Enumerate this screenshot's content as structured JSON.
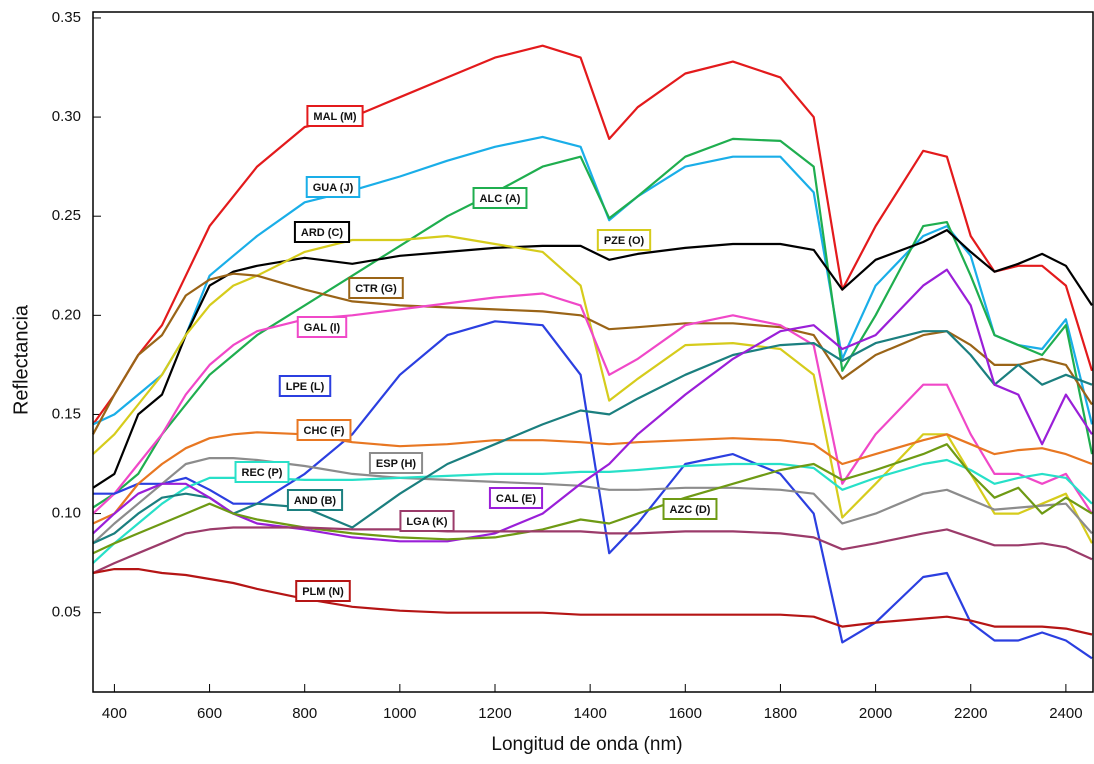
{
  "chart_data": {
    "type": "line",
    "x_label": "Longitud de onda (nm)",
    "y_label": "Reflectancia",
    "x": [
      355,
      400,
      450,
      500,
      550,
      600,
      650,
      700,
      800,
      900,
      1000,
      1100,
      1200,
      1300,
      1380,
      1440,
      1500,
      1600,
      1700,
      1800,
      1870,
      1930,
      2000,
      2100,
      2150,
      2200,
      2250,
      2300,
      2350,
      2400,
      2455
    ],
    "xlim": [
      355,
      2457
    ],
    "xticks": [
      400,
      600,
      800,
      1000,
      1200,
      1400,
      1600,
      1800,
      2000,
      2200,
      2400
    ],
    "ylim": [
      0.01,
      0.353
    ],
    "yticks": [
      0.05,
      {
        "value": 0.1,
        "label": "0.10"
      },
      0.15,
      {
        "value": 0.2,
        "label": "0.20"
      },
      0.25,
      {
        "value": 0.3,
        "label": "0.30"
      },
      0.35
    ],
    "series": [
      {
        "name": "MAL (M)",
        "color": "#e31a1c",
        "values": [
          0.145,
          0.16,
          0.18,
          0.195,
          0.22,
          0.245,
          0.26,
          0.275,
          0.295,
          0.3,
          0.31,
          0.32,
          0.33,
          0.336,
          0.33,
          0.289,
          0.305,
          0.322,
          0.328,
          0.32,
          0.3,
          0.213,
          0.245,
          0.283,
          0.28,
          0.24,
          0.222,
          0.225,
          0.225,
          0.215,
          0.172
        ]
      },
      {
        "name": "GUA (J)",
        "color": "#1aaee8",
        "values": [
          0.145,
          0.15,
          0.16,
          0.17,
          0.19,
          0.22,
          0.23,
          0.24,
          0.257,
          0.263,
          0.27,
          0.278,
          0.285,
          0.29,
          0.285,
          0.248,
          0.26,
          0.275,
          0.28,
          0.28,
          0.262,
          0.178,
          0.215,
          0.24,
          0.245,
          0.23,
          0.19,
          0.185,
          0.183,
          0.198,
          0.145
        ]
      },
      {
        "name": "ALC (A)",
        "color": "#1fae4f",
        "values": [
          0.103,
          0.11,
          0.12,
          0.14,
          0.155,
          0.17,
          0.18,
          0.19,
          0.205,
          0.22,
          0.235,
          0.25,
          0.262,
          0.275,
          0.28,
          0.249,
          0.26,
          0.28,
          0.289,
          0.288,
          0.275,
          0.172,
          0.2,
          0.245,
          0.247,
          0.22,
          0.19,
          0.185,
          0.18,
          0.195,
          0.13
        ]
      },
      {
        "name": "ARD (C)",
        "color": "#000000",
        "values": [
          0.113,
          0.12,
          0.15,
          0.16,
          0.19,
          0.215,
          0.222,
          0.225,
          0.229,
          0.226,
          0.23,
          0.232,
          0.234,
          0.235,
          0.235,
          0.228,
          0.231,
          0.234,
          0.236,
          0.236,
          0.233,
          0.213,
          0.228,
          0.237,
          0.243,
          0.232,
          0.222,
          0.226,
          0.231,
          0.225,
          0.205
        ]
      },
      {
        "name": "PZE (O)",
        "color": "#d6cc1c",
        "values": [
          0.13,
          0.14,
          0.155,
          0.17,
          0.19,
          0.205,
          0.215,
          0.22,
          0.232,
          0.238,
          0.238,
          0.24,
          0.236,
          0.232,
          0.215,
          0.157,
          0.168,
          0.185,
          0.186,
          0.183,
          0.17,
          0.098,
          0.115,
          0.14,
          0.14,
          0.12,
          0.1,
          0.1,
          0.105,
          0.11,
          0.085
        ]
      },
      {
        "name": "CTR (G)",
        "color": "#9a6417",
        "values": [
          0.14,
          0.16,
          0.18,
          0.19,
          0.21,
          0.218,
          0.221,
          0.22,
          0.213,
          0.207,
          0.205,
          0.204,
          0.203,
          0.202,
          0.2,
          0.193,
          0.194,
          0.196,
          0.196,
          0.194,
          0.19,
          0.168,
          0.18,
          0.19,
          0.192,
          0.185,
          0.175,
          0.175,
          0.178,
          0.175,
          0.155
        ]
      },
      {
        "name": "GAL (I)",
        "color": "#f048c8",
        "values": [
          0.1,
          0.11,
          0.125,
          0.14,
          0.16,
          0.175,
          0.185,
          0.192,
          0.198,
          0.2,
          0.203,
          0.206,
          0.209,
          0.211,
          0.205,
          0.17,
          0.178,
          0.195,
          0.2,
          0.195,
          0.185,
          0.115,
          0.14,
          0.165,
          0.165,
          0.14,
          0.12,
          0.12,
          0.115,
          0.12,
          0.1
        ]
      },
      {
        "name": "LPE (L)",
        "color": "#2b3fe0",
        "values": [
          0.11,
          0.11,
          0.115,
          0.115,
          0.118,
          0.112,
          0.105,
          0.105,
          0.12,
          0.14,
          0.17,
          0.19,
          0.197,
          0.195,
          0.17,
          0.08,
          0.095,
          0.125,
          0.13,
          0.12,
          0.1,
          0.035,
          0.045,
          0.068,
          0.07,
          0.045,
          0.036,
          0.036,
          0.04,
          0.036,
          0.027
        ]
      },
      {
        "name": "CHC (F)",
        "color": "#e87722",
        "values": [
          0.095,
          0.1,
          0.115,
          0.125,
          0.133,
          0.138,
          0.14,
          0.141,
          0.14,
          0.136,
          0.134,
          0.135,
          0.137,
          0.137,
          0.136,
          0.135,
          0.136,
          0.137,
          0.138,
          0.137,
          0.135,
          0.125,
          0.13,
          0.137,
          0.14,
          0.135,
          0.13,
          0.132,
          0.133,
          0.13,
          0.125
        ]
      },
      {
        "name": "ESP (H)",
        "color": "#8c8c8c",
        "values": [
          0.085,
          0.095,
          0.105,
          0.115,
          0.125,
          0.128,
          0.128,
          0.127,
          0.124,
          0.12,
          0.118,
          0.117,
          0.116,
          0.115,
          0.114,
          0.112,
          0.112,
          0.113,
          0.113,
          0.112,
          0.11,
          0.095,
          0.1,
          0.11,
          0.112,
          0.107,
          0.102,
          0.103,
          0.104,
          0.105,
          0.09
        ]
      },
      {
        "name": "REC (P)",
        "color": "#27e0c8",
        "values": [
          0.075,
          0.085,
          0.095,
          0.105,
          0.113,
          0.118,
          0.118,
          0.118,
          0.117,
          0.117,
          0.118,
          0.119,
          0.12,
          0.12,
          0.121,
          0.121,
          0.122,
          0.124,
          0.125,
          0.125,
          0.123,
          0.112,
          0.118,
          0.125,
          0.127,
          0.122,
          0.115,
          0.118,
          0.12,
          0.118,
          0.105
        ]
      },
      {
        "name": "AND (B)",
        "color": "#1b7f7f",
        "values": [
          0.085,
          0.09,
          0.1,
          0.108,
          0.11,
          0.108,
          0.1,
          0.105,
          0.103,
          0.093,
          0.11,
          0.125,
          0.135,
          0.145,
          0.152,
          0.15,
          0.158,
          0.17,
          0.18,
          0.185,
          0.186,
          0.177,
          0.186,
          0.192,
          0.192,
          0.18,
          0.165,
          0.175,
          0.165,
          0.17,
          0.165
        ]
      },
      {
        "name": "CAL (E)",
        "color": "#9a1fd8",
        "values": [
          0.09,
          0.1,
          0.11,
          0.115,
          0.115,
          0.108,
          0.1,
          0.095,
          0.092,
          0.088,
          0.086,
          0.086,
          0.09,
          0.1,
          0.115,
          0.125,
          0.14,
          0.16,
          0.178,
          0.192,
          0.195,
          0.183,
          0.19,
          0.215,
          0.223,
          0.205,
          0.165,
          0.16,
          0.135,
          0.16,
          0.14
        ]
      },
      {
        "name": "AZC (D)",
        "color": "#6e9a14",
        "values": [
          0.08,
          0.085,
          0.09,
          0.095,
          0.1,
          0.105,
          0.1,
          0.097,
          0.093,
          0.09,
          0.088,
          0.087,
          0.088,
          0.092,
          0.097,
          0.095,
          0.1,
          0.108,
          0.115,
          0.122,
          0.125,
          0.117,
          0.122,
          0.13,
          0.135,
          0.12,
          0.108,
          0.113,
          0.1,
          0.108,
          0.1
        ]
      },
      {
        "name": "LGA (K)",
        "color": "#9b3b6a",
        "values": [
          0.07,
          0.075,
          0.08,
          0.085,
          0.09,
          0.092,
          0.093,
          0.093,
          0.093,
          0.092,
          0.092,
          0.091,
          0.091,
          0.091,
          0.091,
          0.09,
          0.09,
          0.091,
          0.091,
          0.09,
          0.088,
          0.082,
          0.085,
          0.09,
          0.092,
          0.088,
          0.084,
          0.084,
          0.085,
          0.083,
          0.077
        ]
      },
      {
        "name": "PLM (N)",
        "color": "#b51515",
        "values": [
          0.07,
          0.072,
          0.072,
          0.07,
          0.069,
          0.067,
          0.065,
          0.062,
          0.057,
          0.053,
          0.051,
          0.05,
          0.05,
          0.05,
          0.049,
          0.049,
          0.049,
          0.049,
          0.049,
          0.049,
          0.048,
          0.043,
          0.045,
          0.047,
          0.048,
          0.046,
          0.043,
          0.043,
          0.043,
          0.042,
          0.039
        ]
      }
    ]
  }
}
